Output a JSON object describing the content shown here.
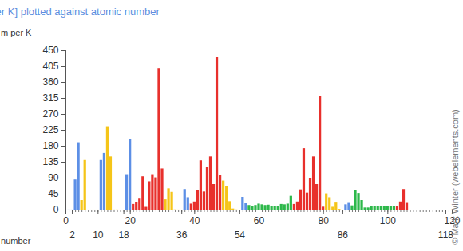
{
  "chart_data": {
    "type": "bar",
    "title": "Thermal conductivity [W per m per K] plotted against atomic number",
    "ylabel": "W per m per K",
    "xlabel": "atomic number",
    "annotations": [
      "© Mark Winter (webelements.com)"
    ],
    "x": [
      1,
      2,
      3,
      4,
      5,
      6,
      7,
      8,
      9,
      10,
      11,
      12,
      13,
      14,
      15,
      16,
      17,
      18,
      19,
      20,
      21,
      22,
      23,
      24,
      25,
      26,
      27,
      28,
      29,
      30,
      31,
      32,
      33,
      34,
      35,
      36,
      37,
      38,
      39,
      40,
      41,
      42,
      43,
      44,
      45,
      46,
      47,
      48,
      49,
      50,
      51,
      52,
      53,
      54,
      55,
      56,
      57,
      58,
      59,
      60,
      61,
      62,
      63,
      64,
      65,
      66,
      67,
      68,
      69,
      70,
      71,
      72,
      73,
      74,
      75,
      76,
      77,
      78,
      79,
      80,
      81,
      82,
      83,
      84,
      85,
      86,
      87,
      88,
      89,
      90,
      91,
      92,
      93,
      94,
      95,
      96,
      97,
      98,
      99,
      100,
      101,
      102,
      103,
      104,
      105,
      106,
      107,
      108,
      109,
      110,
      111,
      112,
      113,
      114,
      115,
      116,
      117,
      118
    ],
    "values": [
      0.18,
      0.15,
      85,
      190,
      27,
      140,
      0.03,
      0.03,
      0.03,
      0.05,
      140,
      160,
      235,
      150,
      0.24,
      0.21,
      0.01,
      0.02,
      100,
      200,
      16,
      22,
      31,
      94,
      7.8,
      80,
      100,
      91,
      400,
      116,
      29,
      60,
      50,
      0.52,
      0.12,
      0.01,
      58,
      35,
      17,
      23,
      54,
      139,
      51,
      120,
      150,
      72,
      430,
      97,
      82,
      67,
      24,
      3,
      0.45,
      0.01,
      36,
      18,
      13,
      11,
      13,
      17,
      15,
      13,
      14,
      11,
      11,
      11,
      16,
      15,
      17,
      39,
      16,
      23,
      57,
      173,
      48,
      88,
      150,
      72,
      320,
      8.3,
      46,
      35,
      8,
      20,
      2,
      0.01,
      15,
      19,
      12,
      54,
      47,
      27,
      6,
      6,
      10,
      10,
      10,
      10,
      10,
      10,
      10,
      10,
      10,
      23,
      58,
      19,
      null,
      null,
      null,
      null,
      null,
      null,
      null,
      null,
      null,
      null,
      null,
      null
    ],
    "colors": [
      "#5c8fe6",
      "#5c8fe6",
      "#5c8fe6",
      "#5c8fe6",
      "#f5c518",
      "#f5c518",
      "#f5c518",
      "#f5c518",
      "#f5c518",
      "#f5c518",
      "#5c8fe6",
      "#5c8fe6",
      "#f5c518",
      "#f5c518",
      "#f5c518",
      "#f5c518",
      "#f5c518",
      "#f5c518",
      "#5c8fe6",
      "#5c8fe6",
      "#e8302c",
      "#e8302c",
      "#e8302c",
      "#e8302c",
      "#e8302c",
      "#e8302c",
      "#e8302c",
      "#e8302c",
      "#e8302c",
      "#e8302c",
      "#f5c518",
      "#f5c518",
      "#f5c518",
      "#f5c518",
      "#f5c518",
      "#f5c518",
      "#5c8fe6",
      "#5c8fe6",
      "#e8302c",
      "#e8302c",
      "#e8302c",
      "#e8302c",
      "#e8302c",
      "#e8302c",
      "#e8302c",
      "#e8302c",
      "#e8302c",
      "#e8302c",
      "#f5c518",
      "#f5c518",
      "#f5c518",
      "#f5c518",
      "#f5c518",
      "#f5c518",
      "#5c8fe6",
      "#5c8fe6",
      "#2db84a",
      "#2db84a",
      "#2db84a",
      "#2db84a",
      "#2db84a",
      "#2db84a",
      "#2db84a",
      "#2db84a",
      "#2db84a",
      "#2db84a",
      "#2db84a",
      "#2db84a",
      "#2db84a",
      "#2db84a",
      "#e8302c",
      "#e8302c",
      "#e8302c",
      "#e8302c",
      "#e8302c",
      "#e8302c",
      "#e8302c",
      "#e8302c",
      "#e8302c",
      "#e8302c",
      "#f5c518",
      "#f5c518",
      "#f5c518",
      "#f5c518",
      "#f5c518",
      "#f5c518",
      "#5c8fe6",
      "#5c8fe6",
      "#2db84a",
      "#2db84a",
      "#2db84a",
      "#2db84a",
      "#2db84a",
      "#2db84a",
      "#2db84a",
      "#2db84a",
      "#2db84a",
      "#2db84a",
      "#2db84a",
      "#2db84a",
      "#2db84a",
      "#2db84a",
      "#e8302c",
      "#e8302c",
      "#e8302c",
      "#e8302c",
      "#e8302c",
      "#e8302c",
      "#e8302c",
      "#e8302c",
      "#e8302c",
      "#e8302c",
      "#f5c518",
      "#f5c518",
      "#f5c518",
      "#f5c518",
      "#f5c518",
      "#f5c518"
    ],
    "xlim": [
      0,
      120
    ],
    "xticks": [
      0,
      2,
      10,
      18,
      20,
      36,
      40,
      54,
      60,
      80,
      86,
      100,
      118,
      120
    ],
    "ylim": [
      0,
      450
    ],
    "yticks": [
      0,
      45,
      90,
      135,
      180,
      225,
      270,
      315,
      360,
      405,
      450
    ],
    "grid": false
  }
}
